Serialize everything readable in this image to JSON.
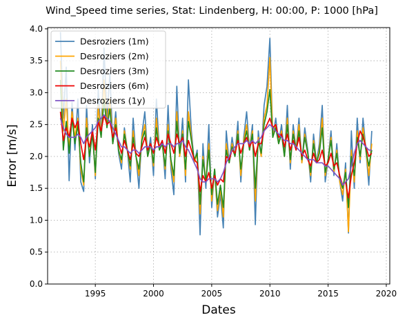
{
  "chart_data": {
    "type": "line",
    "title": "Wind_Speed time series, Stat: Lindenberg, H: 00:00, P: 1000 [hPa]",
    "xlabel": "Dates",
    "ylabel": "Error [m/s]",
    "xlim": [
      1990.9,
      2020.3
    ],
    "ylim": [
      0.0,
      4.02
    ],
    "xticks": [
      "1995",
      "2000",
      "2005",
      "2010",
      "2015",
      "2020"
    ],
    "yticks": [
      "0.0",
      "0.5",
      "1.0",
      "1.5",
      "2.0",
      "2.5",
      "3.0",
      "3.5",
      "4.0"
    ],
    "grid": true,
    "legend_position": "top-left",
    "series": [
      {
        "name": "Desroziers (1m)",
        "color": "#4682b4",
        "x": [
          1992.0,
          1992.25,
          1992.5,
          1992.75,
          1993.0,
          1993.25,
          1993.5,
          1993.75,
          1994.0,
          1994.25,
          1994.5,
          1994.75,
          1995.0,
          1995.25,
          1995.5,
          1995.75,
          1996.0,
          1996.25,
          1996.5,
          1996.75,
          1997.0,
          1997.25,
          1997.5,
          1997.75,
          1998.0,
          1998.25,
          1998.5,
          1998.75,
          1999.0,
          1999.25,
          1999.5,
          1999.75,
          2000.0,
          2000.25,
          2000.5,
          2000.75,
          2001.0,
          2001.25,
          2001.5,
          2001.75,
          2002.0,
          2002.25,
          2002.5,
          2002.75,
          2003.0,
          2003.25,
          2003.5,
          2003.75,
          2004.0,
          2004.25,
          2004.5,
          2004.75,
          2005.0,
          2005.25,
          2005.5,
          2005.75,
          2006.0,
          2006.25,
          2006.5,
          2006.75,
          2007.0,
          2007.25,
          2007.5,
          2007.75,
          2008.0,
          2008.25,
          2008.5,
          2008.75,
          2009.0,
          2009.25,
          2009.5,
          2009.75,
          2010.0,
          2010.25,
          2010.5,
          2010.75,
          2011.0,
          2011.25,
          2011.5,
          2011.75,
          2012.0,
          2012.25,
          2012.5,
          2012.75,
          2013.0,
          2013.25,
          2013.5,
          2013.75,
          2014.0,
          2014.25,
          2014.5,
          2014.75,
          2015.0,
          2015.25,
          2015.5,
          2015.75,
          2016.0,
          2016.25,
          2016.5,
          2016.75,
          2017.0,
          2017.25,
          2017.5,
          2017.75,
          2018.0,
          2018.25,
          2018.5,
          2018.75
        ],
        "y": [
          3.95,
          2.6,
          3.4,
          1.62,
          2.85,
          2.1,
          2.9,
          1.6,
          1.45,
          2.8,
          1.9,
          2.5,
          1.65,
          3.05,
          2.3,
          3.7,
          2.6,
          3.3,
          2.2,
          2.7,
          2.05,
          1.8,
          2.45,
          2.1,
          1.6,
          2.6,
          2.0,
          1.5,
          2.35,
          2.7,
          2.0,
          2.3,
          1.7,
          2.9,
          2.1,
          2.25,
          1.65,
          2.8,
          1.8,
          1.4,
          3.1,
          2.0,
          2.6,
          1.6,
          3.2,
          2.4,
          1.9,
          2.1,
          0.77,
          2.2,
          1.5,
          2.5,
          1.2,
          1.8,
          1.05,
          1.4,
          0.88,
          2.4,
          1.9,
          2.3,
          2.0,
          2.55,
          1.6,
          2.3,
          2.7,
          2.1,
          2.5,
          0.93,
          2.4,
          2.0,
          2.8,
          3.1,
          3.85,
          2.3,
          2.6,
          2.2,
          2.5,
          2.0,
          2.8,
          1.8,
          2.5,
          2.1,
          2.6,
          1.9,
          2.45,
          2.1,
          1.6,
          2.35,
          1.9,
          2.2,
          2.8,
          1.6,
          1.95,
          2.4,
          1.7,
          2.2,
          1.6,
          1.3,
          1.9,
          0.8,
          2.4,
          1.5,
          2.6,
          1.9,
          2.6,
          2.1,
          1.55,
          2.4
        ]
      },
      {
        "name": "Desroziers (2m)",
        "color": "#ffa500",
        "x": [
          1992.0,
          1992.25,
          1992.5,
          1992.75,
          1993.0,
          1993.25,
          1993.5,
          1993.75,
          1994.0,
          1994.25,
          1994.5,
          1994.75,
          1995.0,
          1995.25,
          1995.5,
          1995.75,
          1996.0,
          1996.25,
          1996.5,
          1996.75,
          1997.0,
          1997.25,
          1997.5,
          1997.75,
          1998.0,
          1998.25,
          1998.5,
          1998.75,
          1999.0,
          1999.25,
          1999.5,
          1999.75,
          2000.0,
          2000.25,
          2000.5,
          2000.75,
          2001.0,
          2001.25,
          2001.5,
          2001.75,
          2002.0,
          2002.25,
          2002.5,
          2002.75,
          2003.0,
          2003.25,
          2003.5,
          2003.75,
          2004.0,
          2004.25,
          2004.5,
          2004.75,
          2005.0,
          2005.25,
          2005.5,
          2005.75,
          2006.0,
          2006.25,
          2006.5,
          2006.75,
          2007.0,
          2007.25,
          2007.5,
          2007.75,
          2008.0,
          2008.25,
          2008.5,
          2008.75,
          2009.0,
          2009.25,
          2009.5,
          2009.75,
          2010.0,
          2010.25,
          2010.5,
          2010.75,
          2011.0,
          2011.25,
          2011.5,
          2011.75,
          2012.0,
          2012.25,
          2012.5,
          2012.75,
          2013.0,
          2013.25,
          2013.5,
          2013.75,
          2014.0,
          2014.25,
          2014.5,
          2014.75,
          2015.0,
          2015.25,
          2015.5,
          2015.75,
          2016.0,
          2016.25,
          2016.5,
          2016.75,
          2017.0,
          2017.25,
          2017.5,
          2017.75,
          2018.0,
          2018.25,
          2018.5,
          2018.75
        ],
        "y": [
          3.5,
          2.4,
          2.9,
          2.1,
          2.7,
          2.3,
          2.6,
          1.8,
          1.55,
          2.6,
          2.0,
          2.4,
          1.7,
          2.8,
          2.3,
          3.2,
          2.5,
          2.9,
          2.2,
          2.6,
          2.1,
          1.9,
          2.4,
          2.1,
          1.8,
          2.4,
          2.0,
          1.7,
          2.3,
          2.5,
          2.0,
          2.2,
          1.85,
          2.6,
          2.1,
          2.2,
          1.8,
          2.5,
          1.9,
          1.6,
          2.7,
          2.0,
          2.4,
          1.7,
          2.7,
          2.3,
          1.9,
          2.05,
          1.1,
          2.0,
          1.6,
          2.2,
          1.3,
          1.8,
          1.15,
          1.5,
          1.05,
          2.2,
          1.9,
          2.2,
          2.0,
          2.4,
          1.7,
          2.25,
          2.5,
          2.1,
          2.4,
          1.3,
          2.3,
          2.0,
          2.6,
          2.8,
          3.55,
          2.3,
          2.5,
          2.2,
          2.4,
          2.0,
          2.6,
          1.9,
          2.4,
          2.1,
          2.5,
          1.9,
          2.35,
          2.05,
          1.7,
          2.25,
          1.9,
          2.1,
          2.6,
          1.7,
          1.95,
          2.3,
          1.75,
          2.1,
          1.6,
          1.4,
          1.8,
          0.82,
          2.1,
          1.6,
          2.4,
          1.95,
          2.45,
          2.1,
          1.7,
          2.2
        ]
      },
      {
        "name": "Desroziers (3m)",
        "color": "#228b22",
        "x": [
          1992.0,
          1992.25,
          1992.5,
          1992.75,
          1993.0,
          1993.25,
          1993.5,
          1993.75,
          1994.0,
          1994.25,
          1994.5,
          1994.75,
          1995.0,
          1995.25,
          1995.5,
          1995.75,
          1996.0,
          1996.25,
          1996.5,
          1996.75,
          1997.0,
          1997.25,
          1997.5,
          1997.75,
          1998.0,
          1998.25,
          1998.5,
          1998.75,
          1999.0,
          1999.25,
          1999.5,
          1999.75,
          2000.0,
          2000.25,
          2000.5,
          2000.75,
          2001.0,
          2001.25,
          2001.5,
          2001.75,
          2002.0,
          2002.25,
          2002.5,
          2002.75,
          2003.0,
          2003.25,
          2003.5,
          2003.75,
          2004.0,
          2004.25,
          2004.5,
          2004.75,
          2005.0,
          2005.25,
          2005.5,
          2005.75,
          2006.0,
          2006.25,
          2006.5,
          2006.75,
          2007.0,
          2007.25,
          2007.5,
          2007.75,
          2008.0,
          2008.25,
          2008.5,
          2008.75,
          2009.0,
          2009.25,
          2009.5,
          2009.75,
          2010.0,
          2010.25,
          2010.5,
          2010.75,
          2011.0,
          2011.25,
          2011.5,
          2011.75,
          2012.0,
          2012.25,
          2012.5,
          2012.75,
          2013.0,
          2013.25,
          2013.5,
          2013.75,
          2014.0,
          2014.25,
          2014.5,
          2014.75,
          2015.0,
          2015.25,
          2015.5,
          2015.75,
          2016.0,
          2016.25,
          2016.5,
          2016.75,
          2017.0,
          2017.25,
          2017.5,
          2017.75,
          2018.0,
          2018.25,
          2018.5,
          2018.75
        ],
        "y": [
          3.2,
          2.1,
          2.55,
          2.05,
          2.6,
          2.2,
          2.5,
          1.9,
          1.6,
          2.45,
          2.0,
          2.35,
          1.75,
          2.6,
          2.3,
          2.9,
          2.45,
          2.75,
          2.2,
          2.5,
          2.1,
          1.95,
          2.35,
          2.1,
          1.85,
          2.3,
          2.0,
          1.8,
          2.25,
          2.4,
          2.0,
          2.2,
          1.9,
          2.45,
          2.1,
          2.2,
          1.85,
          2.4,
          1.95,
          1.7,
          2.55,
          2.05,
          2.35,
          1.8,
          2.55,
          2.25,
          1.95,
          2.05,
          1.25,
          1.95,
          1.6,
          2.1,
          1.4,
          1.8,
          1.25,
          1.55,
          1.2,
          2.1,
          1.9,
          2.15,
          2.0,
          2.35,
          1.8,
          2.2,
          2.4,
          2.1,
          2.35,
          1.5,
          2.25,
          2.05,
          2.5,
          2.7,
          3.05,
          2.3,
          2.45,
          2.2,
          2.35,
          2.0,
          2.5,
          1.95,
          2.35,
          2.1,
          2.4,
          1.95,
          2.3,
          2.05,
          1.75,
          2.2,
          1.9,
          2.05,
          2.45,
          1.75,
          1.95,
          2.25,
          1.8,
          2.05,
          1.65,
          1.5,
          1.75,
          1.2,
          2.0,
          1.7,
          2.3,
          2.0,
          2.35,
          2.1,
          1.85,
          2.1
        ]
      },
      {
        "name": "Desroziers (6m)",
        "color": "#ee0000",
        "x": [
          1992.0,
          1992.25,
          1992.5,
          1992.75,
          1993.0,
          1993.25,
          1993.5,
          1993.75,
          1994.0,
          1994.25,
          1994.5,
          1994.75,
          1995.0,
          1995.25,
          1995.5,
          1995.75,
          1996.0,
          1996.25,
          1996.5,
          1996.75,
          1997.0,
          1997.25,
          1997.5,
          1997.75,
          1998.0,
          1998.25,
          1998.5,
          1998.75,
          1999.0,
          1999.25,
          1999.5,
          1999.75,
          2000.0,
          2000.25,
          2000.5,
          2000.75,
          2001.0,
          2001.25,
          2001.5,
          2001.75,
          2002.0,
          2002.25,
          2002.5,
          2002.75,
          2003.0,
          2003.25,
          2003.5,
          2003.75,
          2004.0,
          2004.25,
          2004.5,
          2004.75,
          2005.0,
          2005.25,
          2005.5,
          2005.75,
          2006.0,
          2006.25,
          2006.5,
          2006.75,
          2007.0,
          2007.25,
          2007.5,
          2007.75,
          2008.0,
          2008.25,
          2008.5,
          2008.75,
          2009.0,
          2009.25,
          2009.5,
          2009.75,
          2010.0,
          2010.25,
          2010.5,
          2010.75,
          2011.0,
          2011.25,
          2011.5,
          2011.75,
          2012.0,
          2012.25,
          2012.5,
          2012.75,
          2013.0,
          2013.25,
          2013.5,
          2013.75,
          2014.0,
          2014.25,
          2014.5,
          2014.75,
          2015.0,
          2015.25,
          2015.5,
          2015.75,
          2016.0,
          2016.25,
          2016.5,
          2016.75,
          2017.0,
          2017.25,
          2017.5,
          2017.75,
          2018.0,
          2018.25,
          2018.5,
          2018.75
        ],
        "y": [
          2.7,
          2.25,
          2.45,
          2.3,
          2.6,
          2.45,
          2.55,
          2.2,
          1.95,
          2.3,
          2.15,
          2.4,
          2.1,
          2.55,
          2.4,
          2.65,
          2.5,
          2.55,
          2.3,
          2.45,
          2.2,
          2.05,
          2.25,
          2.1,
          1.95,
          2.2,
          2.05,
          2.0,
          2.15,
          2.3,
          2.1,
          2.2,
          2.05,
          2.3,
          2.15,
          2.25,
          2.05,
          2.35,
          2.2,
          2.05,
          2.35,
          2.2,
          2.3,
          2.0,
          2.25,
          2.1,
          1.95,
          1.9,
          1.45,
          1.7,
          1.6,
          1.75,
          1.5,
          1.7,
          1.55,
          1.65,
          1.6,
          2.0,
          1.95,
          2.1,
          2.05,
          2.25,
          2.05,
          2.2,
          2.3,
          2.15,
          2.25,
          2.0,
          2.2,
          2.2,
          2.4,
          2.5,
          2.6,
          2.45,
          2.5,
          2.3,
          2.35,
          2.15,
          2.35,
          2.1,
          2.25,
          2.1,
          2.3,
          2.0,
          2.1,
          1.95,
          1.85,
          2.05,
          1.9,
          1.95,
          2.1,
          1.85,
          1.9,
          2.05,
          1.85,
          1.9,
          1.7,
          1.55,
          1.6,
          1.35,
          1.7,
          1.9,
          2.2,
          2.4,
          2.3,
          2.15,
          2.0,
          2.05
        ]
      },
      {
        "name": "Desroziers (1y)",
        "color": "#7f55c4",
        "x": [
          1992.0,
          1992.25,
          1992.5,
          1992.75,
          1993.0,
          1993.25,
          1993.5,
          1993.75,
          1994.0,
          1994.25,
          1994.5,
          1994.75,
          1995.0,
          1995.25,
          1995.5,
          1995.75,
          1996.0,
          1996.25,
          1996.5,
          1996.75,
          1997.0,
          1997.25,
          1997.5,
          1997.75,
          1998.0,
          1998.25,
          1998.5,
          1998.75,
          1999.0,
          1999.25,
          1999.5,
          1999.75,
          2000.0,
          2000.25,
          2000.5,
          2000.75,
          2001.0,
          2001.25,
          2001.5,
          2001.75,
          2002.0,
          2002.25,
          2002.5,
          2002.75,
          2003.0,
          2003.25,
          2003.5,
          2003.75,
          2004.0,
          2004.25,
          2004.5,
          2004.75,
          2005.0,
          2005.25,
          2005.5,
          2005.75,
          2006.0,
          2006.25,
          2006.5,
          2006.75,
          2007.0,
          2007.25,
          2007.5,
          2007.75,
          2008.0,
          2008.25,
          2008.5,
          2008.75,
          2009.0,
          2009.25,
          2009.5,
          2009.75,
          2010.0,
          2010.25,
          2010.5,
          2010.75,
          2011.0,
          2011.25,
          2011.5,
          2011.75,
          2012.0,
          2012.25,
          2012.5,
          2012.75,
          2013.0,
          2013.25,
          2013.5,
          2013.75,
          2014.0,
          2014.25,
          2014.5,
          2014.75,
          2015.0,
          2015.25,
          2015.5,
          2015.75,
          2016.0,
          2016.25,
          2016.5,
          2016.75,
          2017.0,
          2017.25,
          2017.5,
          2017.75,
          2018.0,
          2018.25,
          2018.5,
          2018.75
        ],
        "y": [
          2.6,
          2.45,
          2.35,
          2.3,
          2.3,
          2.3,
          2.35,
          2.3,
          2.2,
          2.3,
          2.35,
          2.4,
          2.45,
          2.55,
          2.6,
          2.65,
          2.6,
          2.55,
          2.45,
          2.35,
          2.25,
          2.15,
          2.15,
          2.1,
          2.05,
          2.1,
          2.1,
          2.05,
          2.1,
          2.15,
          2.15,
          2.15,
          2.1,
          2.15,
          2.15,
          2.2,
          2.15,
          2.2,
          2.2,
          2.15,
          2.2,
          2.2,
          2.25,
          2.15,
          2.1,
          2.0,
          1.9,
          1.8,
          1.65,
          1.6,
          1.6,
          1.65,
          1.65,
          1.65,
          1.6,
          1.65,
          1.75,
          1.9,
          2.0,
          2.1,
          2.15,
          2.2,
          2.2,
          2.2,
          2.25,
          2.2,
          2.25,
          2.2,
          2.25,
          2.3,
          2.4,
          2.45,
          2.5,
          2.45,
          2.4,
          2.35,
          2.3,
          2.25,
          2.25,
          2.2,
          2.2,
          2.15,
          2.1,
          2.05,
          2.0,
          1.95,
          1.95,
          1.95,
          1.9,
          1.9,
          1.9,
          1.85,
          1.85,
          1.8,
          1.75,
          1.7,
          1.65,
          1.55,
          1.6,
          1.65,
          1.85,
          2.05,
          2.2,
          2.25,
          2.2,
          2.15,
          2.1,
          2.1
        ]
      }
    ]
  }
}
